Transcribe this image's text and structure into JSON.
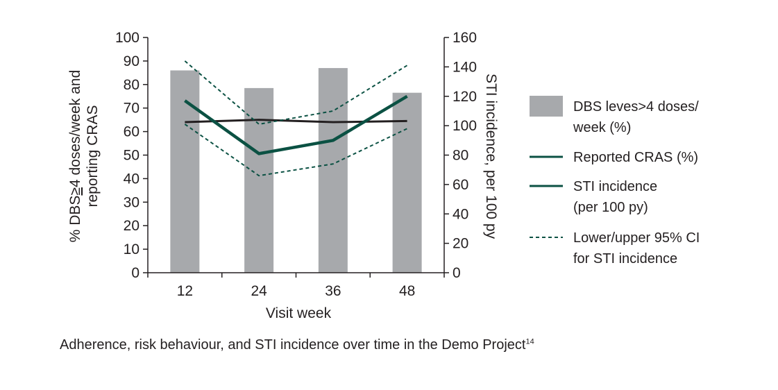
{
  "chart_data": {
    "type": "bar+line",
    "categories": [
      "12",
      "24",
      "36",
      "48"
    ],
    "xlabel": "Visit week",
    "ylabel_left_parts": [
      "% DBS",
      "≥",
      "4 doses/week and"
    ],
    "ylabel_left_line2": "reporting CRAS",
    "ylabel_right": "STI incidence, per 100 py",
    "ylim_left": [
      0,
      100
    ],
    "ylim_right": [
      0,
      160
    ],
    "yticks_left": [
      "0",
      "10",
      "20",
      "30",
      "40",
      "50",
      "60",
      "70",
      "80",
      "90",
      "100"
    ],
    "yticks_right": [
      "0",
      "20",
      "40",
      "60",
      "80",
      "100",
      "120",
      "140",
      "160"
    ],
    "series": [
      {
        "name": "DBS leves>4 doses/ week (%)",
        "kind": "bar",
        "axis": "left",
        "values": [
          86,
          78.5,
          87,
          76.5
        ],
        "color": "#a7a9ac"
      },
      {
        "name": "Reported CRAS (%)",
        "kind": "line",
        "axis": "left",
        "values": [
          64,
          65,
          64,
          64.5
        ],
        "color": "#231f20"
      },
      {
        "name": "STI incidence (per 100 py)",
        "kind": "line",
        "axis": "right",
        "values": [
          117,
          81,
          90,
          120
        ],
        "color": "#0b5143"
      },
      {
        "name": "Lower 95% CI",
        "kind": "dashed",
        "axis": "right",
        "values": [
          101,
          66,
          74,
          98
        ],
        "color": "#0b5143"
      },
      {
        "name": "Upper 95% CI",
        "kind": "dashed",
        "axis": "right",
        "values": [
          144,
          101,
          110,
          141
        ],
        "color": "#0b5143"
      }
    ],
    "legend": [
      {
        "kind": "bar",
        "lines": [
          "DBS leves>4 doses/",
          "week (%)"
        ],
        "color": "#a7a9ac"
      },
      {
        "kind": "line",
        "lines": [
          "Reported CRAS (%)"
        ],
        "color": "#0b5143"
      },
      {
        "kind": "line",
        "lines": [
          "STI incidence",
          "(per 100 py)"
        ],
        "color": "#0b5143"
      },
      {
        "kind": "dashed",
        "lines": [
          "Lower/upper 95% CI",
          "for STI incidence"
        ],
        "color": "#0b5143"
      }
    ]
  },
  "caption": {
    "text": "Adherence, risk behaviour, and STI incidence over time in the Demo Project",
    "superscript": "14"
  }
}
